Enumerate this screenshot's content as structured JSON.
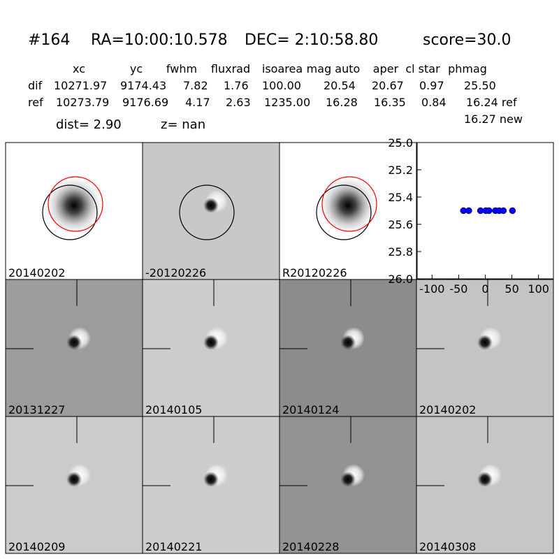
{
  "header": {
    "id": "#164",
    "ra": "RA=10:00:10.578",
    "dec": "DEC= 2:10:58.80",
    "score": "score=30.0"
  },
  "table": {
    "columns": [
      "xc",
      "yc",
      "fwhm",
      "fluxrad",
      "isoarea",
      "mag auto",
      "aper",
      "cl star",
      "phmag"
    ],
    "rows": [
      [
        "dif",
        "10271.97",
        "9174.43",
        "7.82",
        "1.76",
        "100.00",
        "20.54",
        "20.67",
        "0.97",
        "25.50"
      ],
      [
        "ref",
        "10273.79",
        "9176.69",
        "4.17",
        "2.63",
        "1235.00",
        "16.28",
        "16.35",
        "0.84",
        "16.24 ref"
      ]
    ],
    "extra": "16.27 new"
  },
  "dist": "dist=  2.90",
  "z": "z=   nan",
  "panels": [
    {
      "label": "20140202",
      "bg": "#ffffff",
      "blob": "ref",
      "circles": true
    },
    {
      "label": "-20120226",
      "bg": "#c8c8c8",
      "blob": "dif",
      "circles": true
    },
    {
      "label": "R20120226",
      "bg": "#ffffff",
      "blob": "ref",
      "circles": true
    },
    {
      "label": "20131227",
      "bg": "#9c9c9c",
      "blob": "dif"
    },
    {
      "label": "20140105",
      "bg": "#cccccc",
      "blob": "dif"
    },
    {
      "label": "20140124",
      "bg": "#8c8c8c",
      "blob": "dif"
    },
    {
      "label": "20140202",
      "bg": "#c4c4c4",
      "blob": "dif",
      "color": "#ff0000"
    },
    {
      "label": "20140209",
      "bg": "#cbcbcb",
      "blob": "dif"
    },
    {
      "label": "20140221",
      "bg": "#cdcdcd",
      "blob": "dif"
    },
    {
      "label": "20140228",
      "bg": "#929292",
      "blob": "dif"
    },
    {
      "label": "20140308",
      "bg": "#c6c6c6",
      "blob": "dif"
    }
  ],
  "chart_data": {
    "type": "scatter",
    "color": "#0000ff",
    "x": [
      -41,
      -31,
      -9,
      1,
      7,
      19,
      26,
      34,
      51
    ],
    "y": [
      25.5,
      25.5,
      25.5,
      25.5,
      25.5,
      25.5,
      25.5,
      25.5,
      25.5
    ],
    "xlim": [
      -128,
      128
    ],
    "xticks": [
      -100,
      -50,
      0,
      50,
      100
    ],
    "ylim": [
      25.0,
      26.0
    ],
    "y_inverted": true,
    "yticks": [
      {
        "value": 25.0,
        "label": "25.0"
      },
      {
        "value": 25.2,
        "label": "25.2"
      },
      {
        "value": 25.4,
        "label": "25.4"
      },
      {
        "value": 25.6,
        "label": "25.6"
      },
      {
        "value": 25.8,
        "label": "25.8"
      },
      {
        "value": 26.0,
        "label": "26.0"
      }
    ]
  }
}
